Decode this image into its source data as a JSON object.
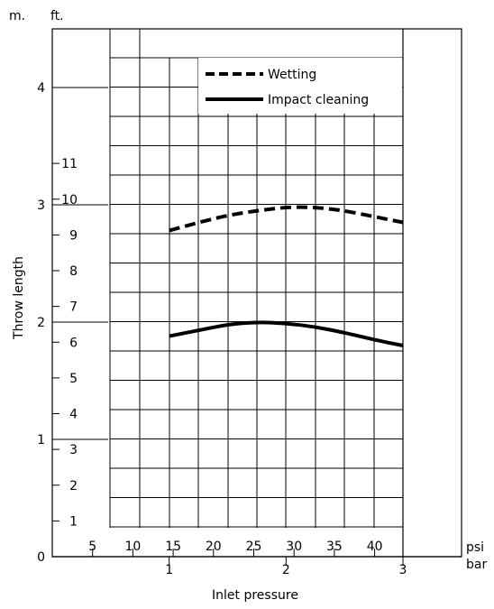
{
  "chart_data": {
    "type": "line",
    "title": "",
    "xlabel": "Inlet pressure",
    "ylabel": "Throw length",
    "x_unit_primary": "bar",
    "x_unit_secondary": "psi",
    "y_unit_primary": "m.",
    "y_unit_secondary": "ft.",
    "xlim": [
      0,
      3
    ],
    "ylim": [
      0,
      4.5
    ],
    "grid": true,
    "legend_position": "top-right",
    "x_ticks_bar": [
      "1",
      "2",
      "3"
    ],
    "x_ticks_bar_values": [
      1,
      2,
      3
    ],
    "x_ticks_psi": [
      "5",
      "10",
      "15",
      "20",
      "25",
      "30",
      "35",
      "40"
    ],
    "x_ticks_psi_values": [
      5,
      10,
      15,
      20,
      25,
      30,
      35,
      40
    ],
    "y_ticks_m": [
      "0",
      "1",
      "2",
      "3",
      "4"
    ],
    "y_ticks_m_values": [
      0,
      1,
      2,
      3,
      4
    ],
    "y_ticks_ft": [
      "1",
      "2",
      "3",
      "4",
      "5",
      "6",
      "7",
      "8",
      "9",
      "10",
      "11"
    ],
    "y_ticks_ft_values": [
      1,
      2,
      3,
      4,
      5,
      6,
      7,
      8,
      9,
      10,
      11
    ],
    "series": [
      {
        "name": "Wetting",
        "style": "dashed",
        "x": [
          1.0,
          1.25,
          1.5,
          1.75,
          2.0,
          2.25,
          2.5,
          2.75,
          3.0
        ],
        "y": [
          2.78,
          2.85,
          2.91,
          2.95,
          2.98,
          2.98,
          2.95,
          2.9,
          2.85
        ]
      },
      {
        "name": "Impact cleaning",
        "style": "solid",
        "x": [
          1.0,
          1.25,
          1.5,
          1.75,
          2.0,
          2.25,
          2.5,
          2.75,
          3.0
        ],
        "y": [
          1.88,
          1.93,
          1.98,
          2.0,
          1.99,
          1.96,
          1.91,
          1.85,
          1.8
        ]
      }
    ],
    "colors": {
      "line": "#000000",
      "grid": "#000000",
      "background": "#ffffff"
    }
  }
}
